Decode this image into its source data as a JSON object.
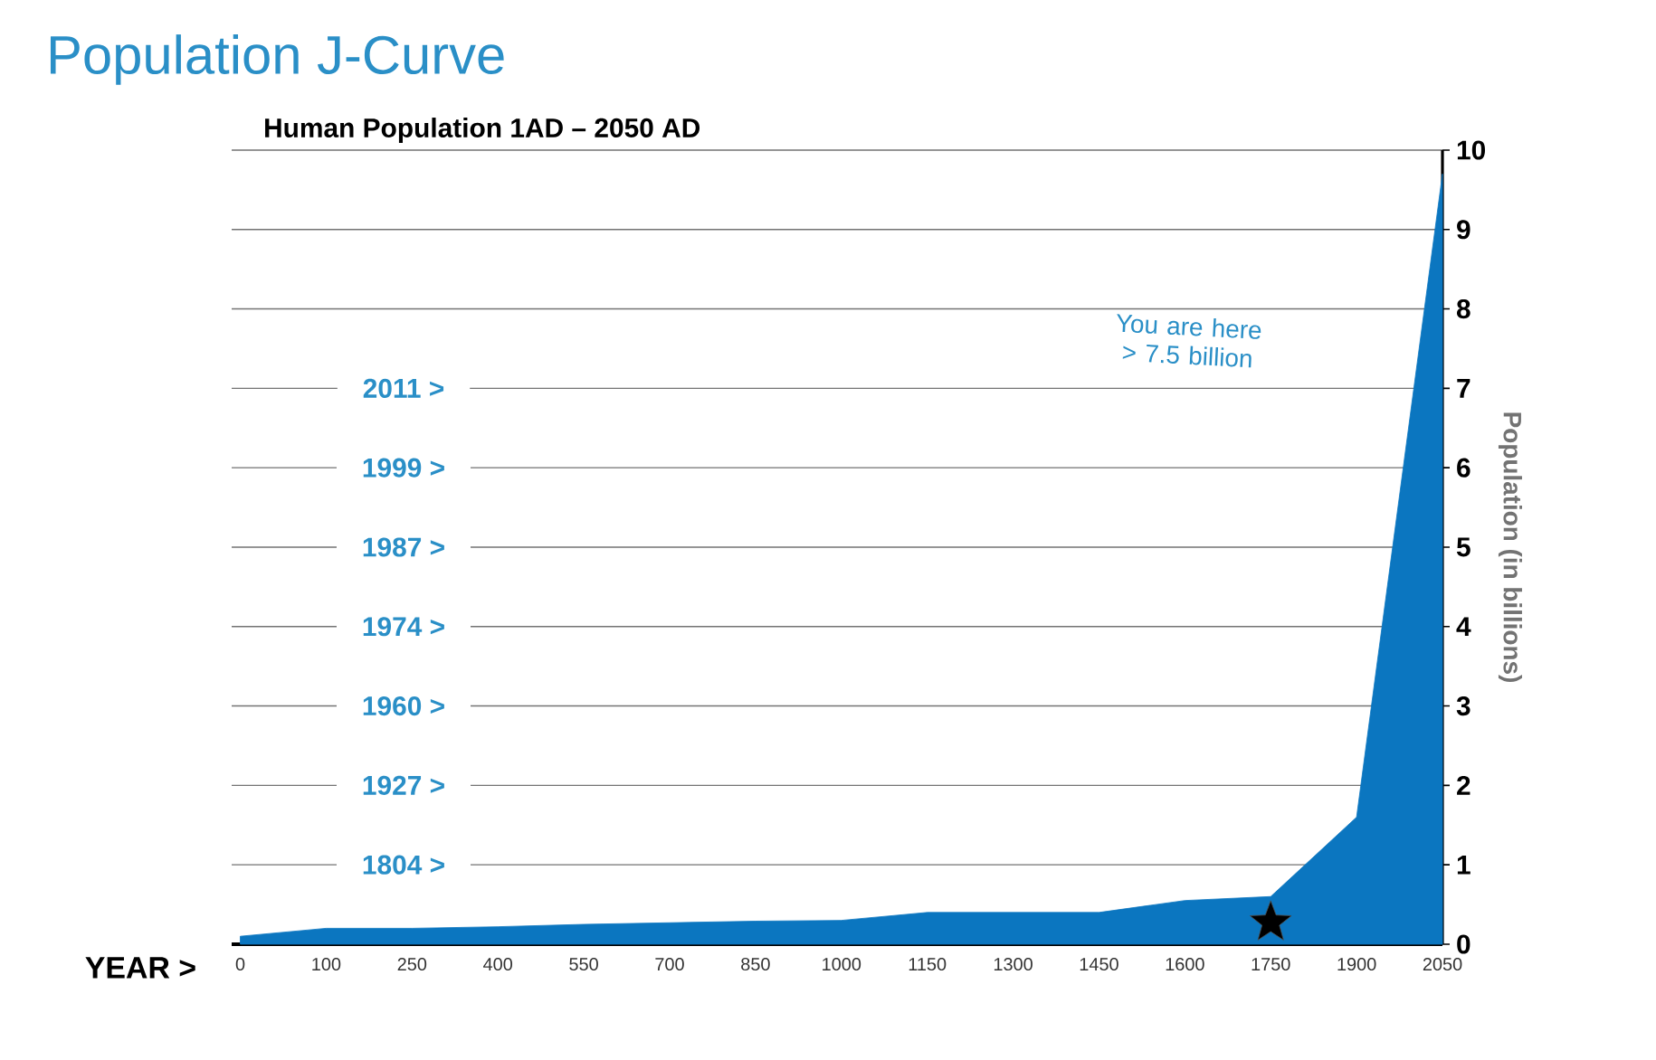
{
  "chart_data": {
    "type": "area",
    "title": "Population J-Curve",
    "subtitle": "Human Population 1AD – 2050 AD",
    "xlabel": "YEAR >",
    "ylabel": "Population (in billions)",
    "categories": [
      "0",
      "100",
      "250",
      "400",
      "550",
      "700",
      "850",
      "1000",
      "1150",
      "1300",
      "1450",
      "1600",
      "1750",
      "1900",
      "2050"
    ],
    "series": [
      {
        "color": "#0b76c0",
        "values": [
          0.1,
          0.2,
          0.2,
          0.22,
          0.25,
          0.27,
          0.29,
          0.3,
          0.4,
          0.4,
          0.4,
          0.55,
          0.6,
          1.6,
          9.7
        ]
      }
    ],
    "ylim": [
      0,
      10
    ],
    "yticks": [
      0,
      1,
      2,
      3,
      4,
      5,
      6,
      7,
      8,
      9,
      10
    ],
    "grid": "y",
    "annotations": [
      "2011 >",
      "1999 >",
      "1987 >",
      "1974 >",
      "1960 >",
      "1927 >",
      "1804 >",
      "You are here > 7.5 billion"
    ]
  }
}
